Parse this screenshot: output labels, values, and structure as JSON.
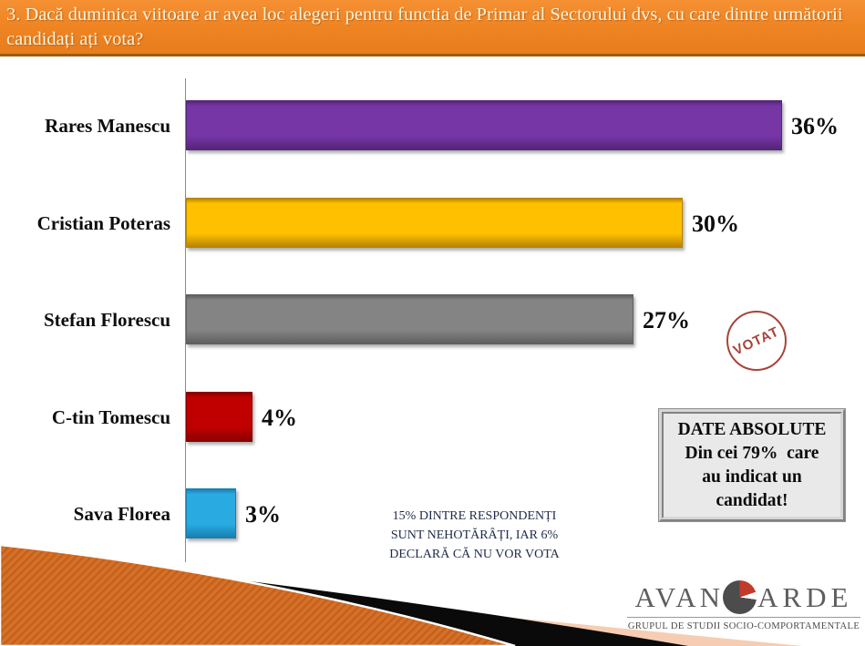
{
  "header": {
    "question": "3. Dacă duminica viitoare ar avea loc alegeri pentru functia de Primar al Sectorului dvs,  cu care dintre următorii candidați ați vota?"
  },
  "chart_data": {
    "type": "bar",
    "orientation": "horizontal",
    "title": "",
    "xlabel": "",
    "ylabel": "",
    "xlim": [
      0,
      36
    ],
    "grid": false,
    "legend": false,
    "categories": [
      "Rares Manescu",
      "Cristian Poteras",
      "Stefan Florescu",
      "C-tin Tomescu",
      "Sava Florea"
    ],
    "values": [
      36,
      30,
      27,
      4,
      3
    ],
    "value_labels": [
      "36%",
      "30%",
      "27%",
      "4%",
      "3%"
    ],
    "bar_colors": [
      "#7636a6",
      "#ffc000",
      "#848484",
      "#c00000",
      "#29abe2"
    ],
    "bar_border_colors": [
      "#552578",
      "#b78500",
      "#5f5f5f",
      "#8a0000",
      "#1a7fb0"
    ]
  },
  "stamp": {
    "label": "VOTAT",
    "color": "#a94438"
  },
  "callout": {
    "lines": [
      "DATE ABSOLUTE",
      "Din cei 79%  care",
      "au indicat un",
      "candidat!"
    ]
  },
  "note": {
    "lines": [
      "15% DINTRE RESPONDENȚI",
      "SUNT NEHOTĂRÂȚI, IAR 6%",
      "DECLARĂ CĂ NU VOR VOTA"
    ]
  },
  "logo": {
    "prefix": "AVAN",
    "suffix": "ARDE",
    "pie_icon_colors": {
      "red": "#c23b2b",
      "gray": "#4c4c4c"
    },
    "tagline": "GRUPUL DE STUDII SOCIO-COMPORTAMENTALE"
  },
  "decor_colors": {
    "orange": "#d4702a",
    "black": "#0a0a0a",
    "peach": "#f6cdb2"
  }
}
